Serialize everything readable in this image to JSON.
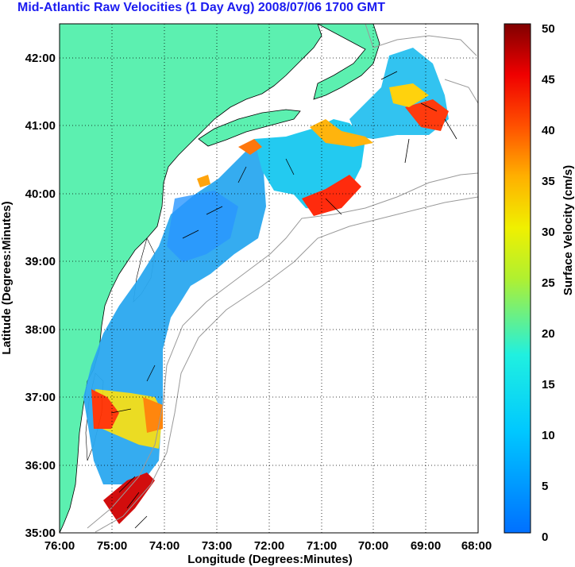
{
  "title": "Mid-Atlantic Raw Velocities (1 Day Avg) 2008/07/06 1700 GMT",
  "map": {
    "xlabel": "Longitude (Degrees:Minutes)",
    "ylabel": "Latitude (Degrees:Minutes)",
    "lon_range": [
      -76,
      -68
    ],
    "lat_range": [
      35,
      42.5
    ],
    "x_ticks": [
      "76:00",
      "75:00",
      "74:00",
      "73:00",
      "72:00",
      "71:00",
      "70:00",
      "69:00",
      "68:00"
    ],
    "y_ticks": [
      "35:00",
      "36:00",
      "37:00",
      "38:00",
      "39:00",
      "40:00",
      "41:00",
      "42:00"
    ],
    "grid": "dotted",
    "land_color": "#5cf0b0",
    "ocean_color": "#ffffff"
  },
  "colorbar": {
    "label": "Surface Velocity (cm/s)",
    "min": 0,
    "max": 50,
    "ticks": [
      "0",
      "5",
      "10",
      "15",
      "20",
      "25",
      "30",
      "35",
      "40",
      "45",
      "50"
    ],
    "colormap": "jet"
  }
}
